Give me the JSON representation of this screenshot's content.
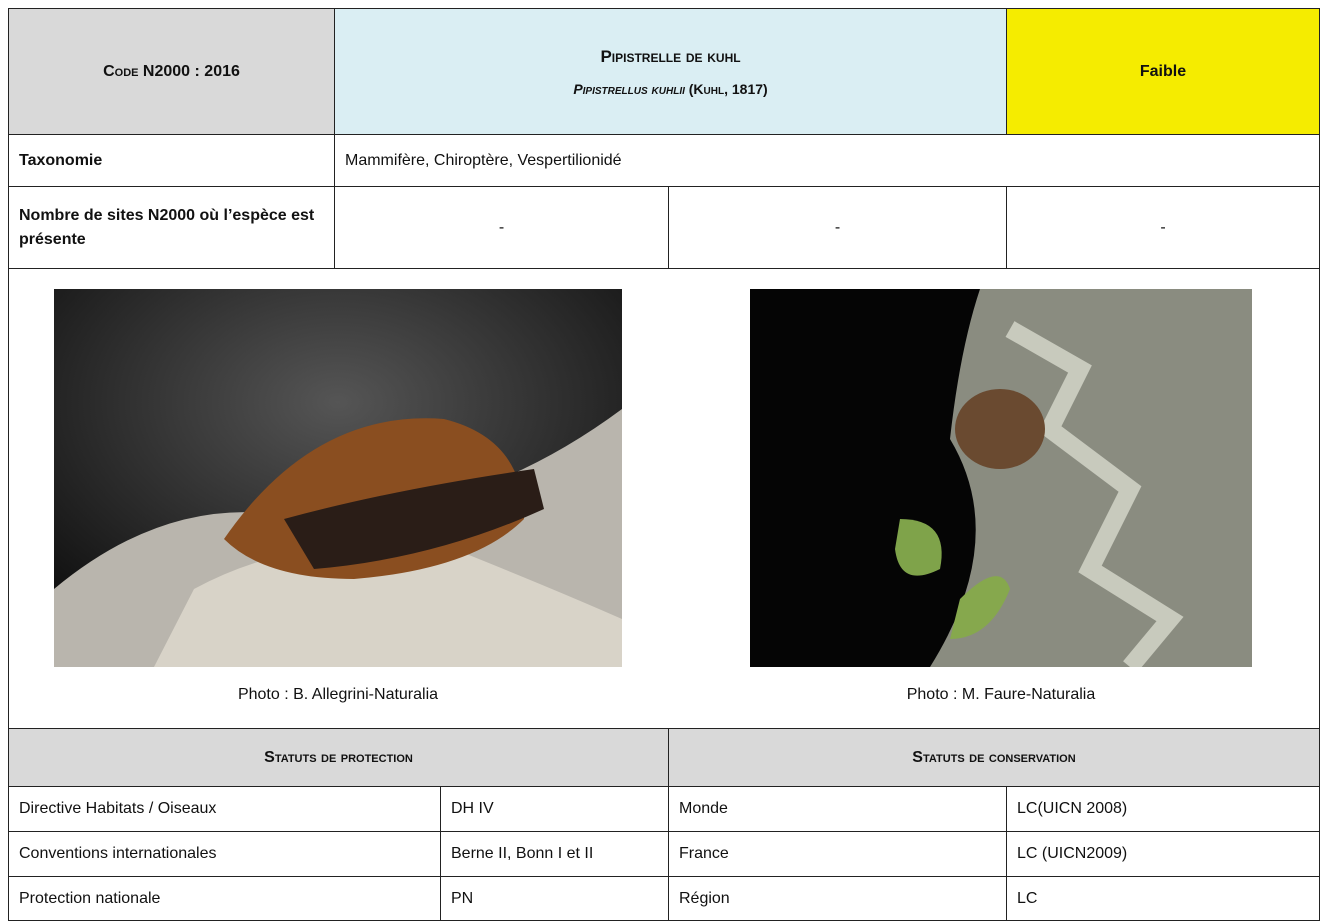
{
  "header": {
    "code": "Code N2000 : 2016",
    "common_name": "Pipistrelle de kuhl",
    "scientific_name": "Pipistrellus kuhlii",
    "authority": "(Kuhl, 1817)",
    "level": "Faible"
  },
  "taxonomy": {
    "label": "Taxonomie",
    "value": "Mammifère, Chiroptère, Vespertilionidé"
  },
  "sites": {
    "label": "Nombre de sites N2000 où l’espèce est présente",
    "values": [
      "-",
      "-",
      "-"
    ]
  },
  "photos": [
    {
      "caption": "Photo : B. Allegrini-Naturalia"
    },
    {
      "caption": "Photo : M. Faure-Naturalia"
    }
  ],
  "protection": {
    "title": "Statuts de protection",
    "rows": [
      [
        "Directive Habitats / Oiseaux",
        "DH IV"
      ],
      [
        "Conventions internationales",
        "Berne II, Bonn I et II"
      ],
      [
        "Protection nationale",
        "PN"
      ]
    ]
  },
  "conservation": {
    "title": "Statuts de conservation",
    "rows": [
      [
        "Monde",
        "LC(UICN 2008)"
      ],
      [
        "France",
        "LC (UICN2009)"
      ],
      [
        "Région",
        "LC"
      ]
    ]
  }
}
